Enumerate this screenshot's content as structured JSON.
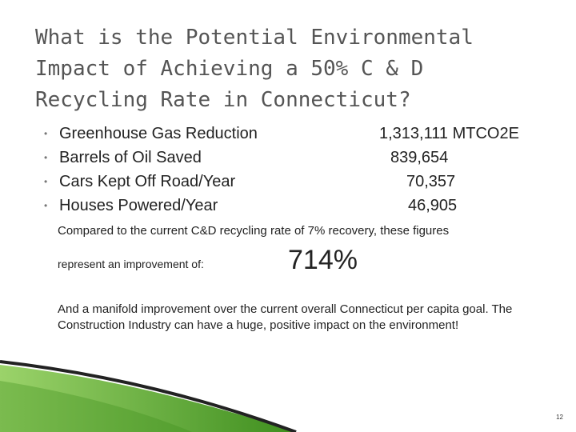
{
  "slide": {
    "title_lines": [
      "What is the Potential Environmental",
      "Impact of Achieving a 50% C & D",
      "Recycling Rate in Connecticut?"
    ],
    "bullets": [
      {
        "label": "Greenhouse Gas Reduction",
        "value": "1,313,111 MTCO2E"
      },
      {
        "label": "Barrels of Oil Saved",
        "value": "839,654"
      },
      {
        "label": "Cars Kept Off Road/Year",
        "value": "70,357"
      },
      {
        "label": "Houses Powered/Year",
        "value": "46,905"
      }
    ],
    "bullet_char": "•",
    "comparison_text": "Compared to the current C&D recycling rate of 7% recovery, these figures",
    "represent_text": "represent an improvement of:",
    "improvement_value": "714%",
    "manifold_text": "And a manifold improvement over the current overall Connecticut per capita goal.  The Construction Industry can have a huge, positive impact on the environment!",
    "page_number": "12"
  },
  "colors": {
    "title": "#555555",
    "body_text": "#222222",
    "accent_green_light": "#9bd36a",
    "accent_green_dark": "#3e8e1e"
  }
}
